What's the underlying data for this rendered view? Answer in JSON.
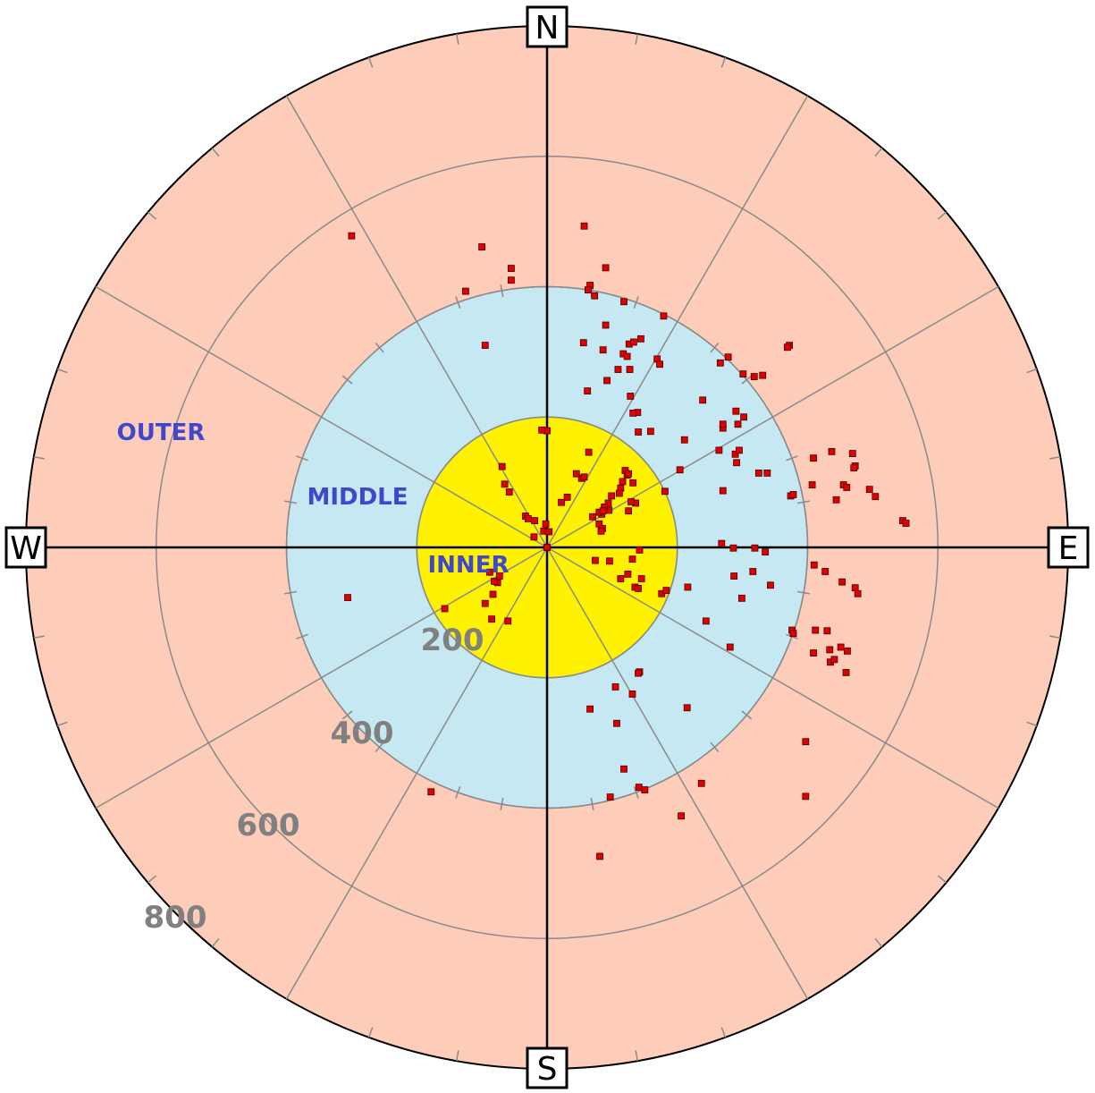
{
  "chart_data": {
    "type": "scatter",
    "coordinate_system": "polar",
    "radial_unit": "m",
    "radial_max": 800,
    "radial_range": [
      0,
      800
    ],
    "angle_convention": "compass bearing, clockwise from North",
    "grid": true,
    "spoke_interval_deg": 30,
    "compass_labels": [
      "N",
      "E",
      "S",
      "W"
    ],
    "ring_labels": [
      "200",
      "400",
      "600",
      "800"
    ],
    "ring_values": [
      200,
      400,
      600,
      800
    ],
    "zones": [
      {
        "label": "INNER",
        "from": 0,
        "to": 200,
        "color": "#fff200"
      },
      {
        "label": "MIDDLE",
        "from": 200,
        "to": 400,
        "color": "#c5e8f3"
      },
      {
        "label": "OUTER",
        "from": 400,
        "to": 800,
        "color": "#fdcdb9"
      }
    ],
    "point_color": "#e00000",
    "points": [
      [
        -300,
        478
      ],
      [
        -100,
        461
      ],
      [
        -55,
        428
      ],
      [
        -55,
        410
      ],
      [
        -125,
        393
      ],
      [
        -95,
        310
      ],
      [
        57,
        493
      ],
      [
        66,
        402
      ],
      [
        63,
        395
      ],
      [
        90,
        429
      ],
      [
        73,
        386
      ],
      [
        118,
        377
      ],
      [
        90,
        341
      ],
      [
        56,
        314
      ],
      [
        0,
        179
      ],
      [
        -8,
        180
      ],
      [
        -69,
        124
      ],
      [
        -65,
        97
      ],
      [
        -58,
        85
      ],
      [
        -19,
        41
      ],
      [
        -5,
        25
      ],
      [
        53,
        106
      ],
      [
        31,
        77
      ],
      [
        22,
        69
      ],
      [
        57,
        108
      ],
      [
        45,
        113
      ],
      [
        99,
        79
      ],
      [
        84,
        51
      ],
      [
        80,
        54
      ],
      [
        120,
        118
      ],
      [
        123,
        111
      ],
      [
        116,
        101
      ],
      [
        113,
        91
      ],
      [
        125,
        113
      ],
      [
        132,
        99
      ],
      [
        111,
        83
      ],
      [
        136,
        68
      ],
      [
        129,
        70
      ],
      [
        125,
        56
      ],
      [
        94,
        68
      ],
      [
        95,
        57
      ],
      [
        88,
        62
      ],
      [
        86,
        56
      ],
      [
        80,
        36
      ],
      [
        70,
        47
      ],
      [
        85,
        29
      ],
      [
        83,
        25
      ],
      [
        74,
        -20
      ],
      [
        96,
        -21
      ],
      [
        142,
        -4
      ],
      [
        131,
        -18
      ],
      [
        124,
        -41
      ],
      [
        145,
        -48
      ],
      [
        176,
        -71
      ],
      [
        135,
        -61
      ],
      [
        140,
        -63
      ],
      [
        183,
        -66
      ],
      [
        113,
        -48
      ],
      [
        126,
        312
      ],
      [
        144,
        320
      ],
      [
        179,
        355
      ],
      [
        117,
        297
      ],
      [
        109,
        273
      ],
      [
        123,
        293
      ],
      [
        127,
        273
      ],
      [
        169,
        289
      ],
      [
        173,
        281
      ],
      [
        128,
        232
      ],
      [
        139,
        207
      ],
      [
        62,
        240
      ],
      [
        92,
        256
      ],
      [
        132,
        206
      ],
      [
        140,
        177
      ],
      [
        159,
        178
      ],
      [
        86,
        303
      ],
      [
        133,
        315
      ],
      [
        64,
        146
      ],
      [
        181,
        86
      ],
      [
        204,
        119
      ],
      [
        266,
        283
      ],
      [
        278,
        292
      ],
      [
        301,
        266
      ],
      [
        318,
        262
      ],
      [
        372,
        310
      ],
      [
        369,
        307
      ],
      [
        331,
        264
      ],
      [
        290,
        209
      ],
      [
        302,
        200
      ],
      [
        293,
        189
      ],
      [
        211,
        165
      ],
      [
        239,
        226
      ],
      [
        270,
        87
      ],
      [
        291,
        130
      ],
      [
        264,
        149
      ],
      [
        325,
        114
      ],
      [
        338,
        114
      ],
      [
        374,
        79
      ],
      [
        378,
        81
      ],
      [
        268,
        6
      ],
      [
        286,
        -1
      ],
      [
        319,
        -1
      ],
      [
        335,
        -7
      ],
      [
        343,
        -58
      ],
      [
        316,
        -37
      ],
      [
        299,
        -78
      ],
      [
        287,
        -44
      ],
      [
        216,
        -61
      ],
      [
        244,
        -113
      ],
      [
        270,
        183
      ],
      [
        289,
        143
      ],
      [
        270,
        189
      ],
      [
        295,
        149
      ],
      [
        409,
        137
      ],
      [
        437,
        147
      ],
      [
        469,
        144
      ],
      [
        407,
        96
      ],
      [
        455,
        96
      ],
      [
        473,
        125
      ],
      [
        471,
        122
      ],
      [
        460,
        92
      ],
      [
        495,
        89
      ],
      [
        504,
        78
      ],
      [
        444,
        73
      ],
      [
        410,
        -27
      ],
      [
        427,
        -37
      ],
      [
        453,
        -53
      ],
      [
        473,
        -62
      ],
      [
        477,
        -71
      ],
      [
        412,
        -127
      ],
      [
        430,
        -128
      ],
      [
        434,
        -157
      ],
      [
        409,
        -162
      ],
      [
        451,
        -153
      ],
      [
        435,
        -176
      ],
      [
        461,
        -159
      ],
      [
        459,
        -192
      ],
      [
        441,
        -172
      ],
      [
        376,
        -127
      ],
      [
        378,
        -132
      ],
      [
        281,
        -153
      ],
      [
        215,
        -246
      ],
      [
        237,
        -362
      ],
      [
        397,
        -382
      ],
      [
        118,
        -340
      ],
      [
        97,
        -383
      ],
      [
        150,
        -372
      ],
      [
        141,
        -368
      ],
      [
        81,
        -474
      ],
      [
        66,
        -248
      ],
      [
        105,
        -214
      ],
      [
        142,
        -191
      ],
      [
        140,
        -193
      ],
      [
        107,
        -270
      ],
      [
        131,
        -225
      ],
      [
        206,
        -412
      ],
      [
        397,
        -298
      ],
      [
        546,
        41
      ],
      [
        551,
        37
      ],
      [
        -178,
        -375
      ],
      [
        -306,
        -77
      ],
      [
        -157,
        -94
      ],
      [
        -60,
        -113
      ],
      [
        -76,
        -54
      ],
      [
        -85,
        -110
      ],
      [
        -83,
        -72
      ],
      [
        -88,
        -38
      ],
      [
        -95,
        -86
      ],
      [
        -81,
        -52
      ],
      [
        -73,
        -44
      ],
      [
        -33,
        48
      ],
      [
        -29,
        44
      ],
      [
        -20,
        16
      ],
      [
        -2,
        36
      ],
      [
        0,
        0
      ],
      [
        3,
        24
      ]
    ]
  }
}
